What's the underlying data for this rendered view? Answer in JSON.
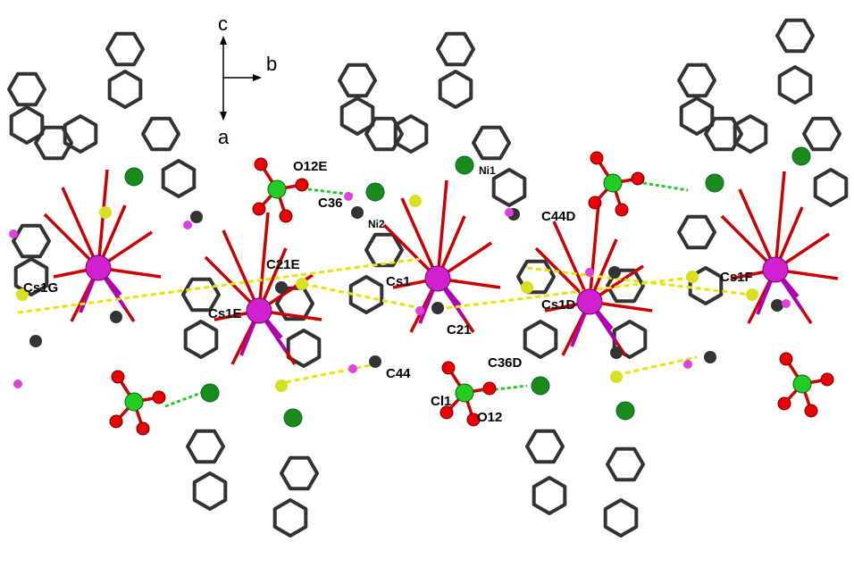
{
  "axes": {
    "c": "c",
    "b": "b",
    "a": "a"
  },
  "labels": [
    "O12E",
    "C36",
    "Ni2",
    "Ni1",
    "C44D",
    "C21E",
    "Cs1",
    "Cs1G",
    "Cs1E",
    "C21",
    "Cs1D",
    "Cs1F",
    "C44",
    "C36D",
    "Cl1",
    "O12"
  ]
}
